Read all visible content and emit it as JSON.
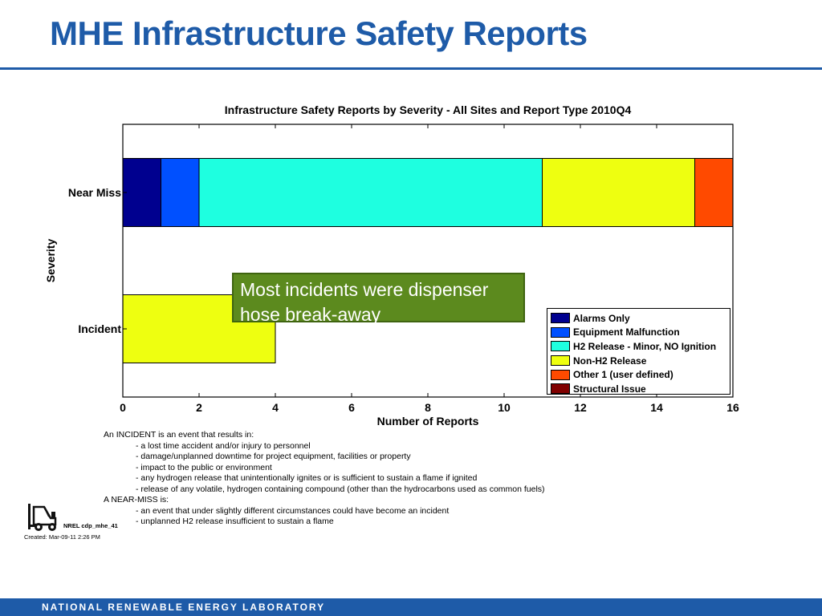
{
  "slide": {
    "title": "MHE Infrastructure Safety Reports"
  },
  "chart_data": {
    "type": "bar",
    "orientation": "horizontal",
    "stacked": true,
    "title": "Infrastructure Safety Reports by Severity - All Sites and Report Type 2010Q4",
    "xlabel": "Number of Reports",
    "ylabel": "Severity",
    "xlim": [
      0,
      16
    ],
    "xticks": [
      0,
      2,
      4,
      6,
      8,
      10,
      12,
      14,
      16
    ],
    "categories": [
      "Near Miss",
      "Incident"
    ],
    "series": [
      {
        "name": "Alarms Only",
        "color": "#00008f",
        "values": [
          1,
          0
        ]
      },
      {
        "name": "Equipment Malfunction",
        "color": "#0050ff",
        "values": [
          1,
          0
        ]
      },
      {
        "name": "H2 Release - Minor, NO Ignition",
        "color": "#1effe0",
        "values": [
          9,
          0
        ]
      },
      {
        "name": "Non-H2 Release",
        "color": "#eeff10",
        "values": [
          4,
          4
        ]
      },
      {
        "name": "Other 1 (user defined)",
        "color": "#ff4a00",
        "values": [
          1,
          0
        ]
      },
      {
        "name": "Structural Issue",
        "color": "#800000",
        "values": [
          0,
          0
        ]
      }
    ],
    "legend_position": "lower-right",
    "grid": false
  },
  "callout": {
    "text": "Most incidents were dispenser hose break-away"
  },
  "definitions": [
    {
      "text": "An INCIDENT is an event that results in:",
      "indent": false
    },
    {
      "text": "- a lost time accident and/or injury to personnel",
      "indent": true
    },
    {
      "text": "- damage/unplanned downtime for project equipment, facilities or property",
      "indent": true
    },
    {
      "text": "- impact to the public or environment",
      "indent": true
    },
    {
      "text": "- any hydrogen release that unintentionally ignites or is sufficient to sustain a flame if ignited",
      "indent": true
    },
    {
      "text": "- release of any volatile, hydrogen containing compound (other than the hydrocarbons used as common fuels)",
      "indent": true
    },
    {
      "text": "A NEAR-MISS is:",
      "indent": false
    },
    {
      "text": "- an event that under slightly different circumstances could have become an incident",
      "indent": true
    },
    {
      "text": "- unplanned H2 release insufficient to sustain a flame",
      "indent": true
    }
  ],
  "footer": {
    "code": "NREL cdp_mhe_41",
    "created": "Created: Mar-09-11  2:26 PM",
    "org": "NATIONAL RENEWABLE ENERGY LABORATORY",
    "logo_icon": "forklift-icon"
  }
}
